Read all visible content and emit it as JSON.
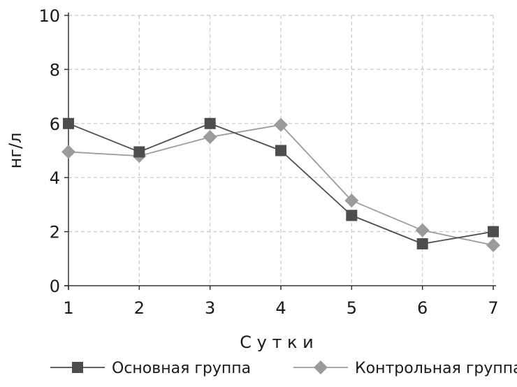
{
  "chart_data": {
    "type": "line",
    "x": [
      1,
      2,
      3,
      4,
      5,
      6,
      7
    ],
    "xlabel": "С у т к и",
    "ylabel": "нг/л",
    "ylim": [
      0,
      10
    ],
    "yticks": [
      0,
      2,
      4,
      6,
      8,
      10
    ],
    "xticks": [
      1,
      2,
      3,
      4,
      5,
      6,
      7
    ],
    "grid": true,
    "legend_position": "bottom",
    "series": [
      {
        "name": "Основная группа",
        "values": [
          6.0,
          4.95,
          6.0,
          5.0,
          2.6,
          1.55,
          2.0
        ],
        "marker": "square",
        "color": "#4d4d4d"
      },
      {
        "name": "Контрольная группа",
        "values": [
          4.95,
          4.8,
          5.5,
          5.95,
          3.15,
          2.05,
          1.5
        ],
        "marker": "diamond",
        "color": "#9b9b9b"
      }
    ]
  }
}
